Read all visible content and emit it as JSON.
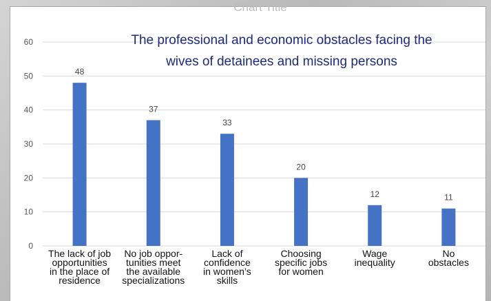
{
  "chart_data": {
    "type": "bar",
    "placeholder_title": "Chart Title",
    "title_lines": [
      "The professional and economic obstacles facing the",
      "wives of detainees and missing persons"
    ],
    "categories": [
      [
        "The lack of job",
        "opportunities",
        "in the place of",
        "residence"
      ],
      [
        "No job oppor-",
        "tunities meet",
        "the available",
        "specializations"
      ],
      [
        "Lack of",
        "confidence",
        "in women’s",
        "skills"
      ],
      [
        "Choosing",
        "specific jobs",
        "for women"
      ],
      [
        "Wage",
        "inequality"
      ],
      [
        "No",
        "obstacles"
      ]
    ],
    "values": [
      48,
      37,
      33,
      20,
      12,
      11
    ],
    "yticks": [
      0,
      10,
      20,
      30,
      40,
      50,
      60
    ],
    "ylim": [
      0,
      60
    ],
    "grid": true,
    "bar_color": "#4472c4",
    "grid_color": "#d9d9d9"
  }
}
